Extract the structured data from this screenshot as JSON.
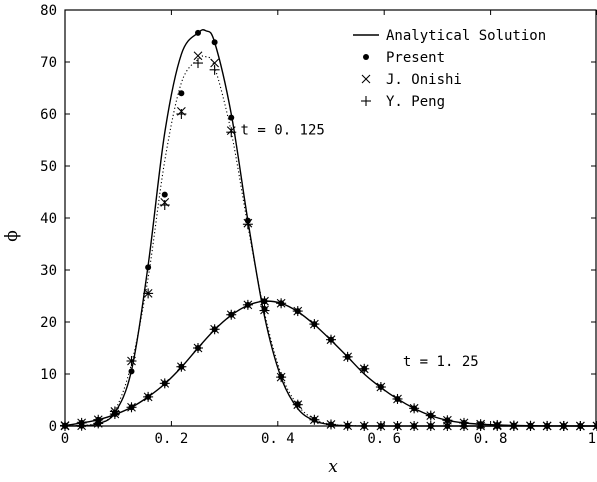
{
  "chart_data": {
    "type": "line",
    "xlabel": "x",
    "ylabel": "ϕ",
    "xlim": [
      0,
      1
    ],
    "ylim": [
      0,
      80
    ],
    "x_ticks": [
      0,
      0.2,
      0.4,
      0.6,
      0.8,
      1
    ],
    "x_tick_labels": [
      "0",
      "0. 2",
      "0. 4",
      "0. 6",
      "0. 8",
      "1"
    ],
    "y_ticks": [
      0,
      10,
      20,
      30,
      40,
      50,
      60,
      70,
      80
    ],
    "y_tick_labels": [
      "0",
      "10",
      "20",
      "30",
      "40",
      "50",
      "60",
      "70",
      "80"
    ],
    "grid": false,
    "legend_position": "top-right",
    "legend": [
      {
        "label": "Analytical Solution",
        "marker": "line"
      },
      {
        "label": "Present",
        "marker": "dot"
      },
      {
        "label": "J. Onishi",
        "marker": "x"
      },
      {
        "label": "Y. Peng",
        "marker": "plus"
      }
    ],
    "annotations": [
      {
        "text": "t = 0. 125",
        "x": 0.33,
        "y": 57
      },
      {
        "text": "t = 1. 25",
        "x": 0.635,
        "y": 12.5
      }
    ],
    "series": [
      {
        "name": "Analytical Solution",
        "curve": "t = 0.125",
        "style": "solid",
        "x": [
          0.0,
          0.03125,
          0.0625,
          0.09375,
          0.125,
          0.15625,
          0.1875,
          0.21875,
          0.25,
          0.265,
          0.28125,
          0.3125,
          0.34375,
          0.375,
          0.40625,
          0.4375,
          0.46875,
          0.5,
          0.53125,
          0.5625,
          0.6,
          0.7,
          0.8,
          0.9,
          1.0
        ],
        "y": [
          0.01,
          0.05,
          0.43,
          2.56,
          10.7,
          30.9,
          56.4,
          71.5,
          75.6,
          76.0,
          73.8,
          60.0,
          39.5,
          21.1,
          9.3,
          3.35,
          1.02,
          0.26,
          0.06,
          0.01,
          0.0,
          0.0,
          0.0,
          0.0,
          0.0
        ]
      },
      {
        "name": "Analytical Solution",
        "curve": "t = 1.25",
        "style": "solid",
        "x": [
          0.0,
          0.03125,
          0.0625,
          0.09375,
          0.125,
          0.15625,
          0.1875,
          0.21875,
          0.25,
          0.28125,
          0.3125,
          0.34375,
          0.375,
          0.40625,
          0.4375,
          0.46875,
          0.5,
          0.53125,
          0.5625,
          0.59375,
          0.625,
          0.65625,
          0.6875,
          0.71875,
          0.75,
          0.78125,
          0.8125,
          0.84375,
          0.875,
          0.90625,
          0.9375,
          0.96875,
          1.0
        ],
        "y": [
          0.1,
          0.6,
          1.2,
          2.2,
          3.6,
          5.6,
          8.1,
          11.3,
          15.0,
          18.5,
          21.3,
          23.2,
          24.0,
          23.6,
          22.0,
          19.5,
          16.5,
          13.3,
          10.0,
          7.4,
          5.2,
          3.4,
          2.0,
          1.1,
          0.6,
          0.35,
          0.2,
          0.1,
          0.05,
          0.02,
          0.01,
          0.0,
          0.0
        ]
      },
      {
        "name": "Present",
        "marker": "dot",
        "x": [
          0.0,
          0.03125,
          0.0625,
          0.09375,
          0.125,
          0.15625,
          0.1875,
          0.21875,
          0.25,
          0.28125,
          0.3125,
          0.34375,
          0.375,
          0.40625,
          0.4375,
          0.46875,
          0.5,
          0.53125,
          0.5625,
          0.59375,
          0.625,
          0.65625,
          0.6875,
          0.71875,
          0.75,
          0.78125,
          0.8125,
          0.84375,
          0.875,
          0.90625,
          0.9375,
          0.96875,
          1.0,
          0.0,
          0.03125,
          0.0625,
          0.09375,
          0.125,
          0.15625,
          0.1875,
          0.21875,
          0.25,
          0.28125,
          0.3125,
          0.34375,
          0.375,
          0.40625,
          0.4375,
          0.46875,
          0.5,
          0.53125,
          0.5625,
          0.59375,
          0.625,
          0.65625,
          0.6875,
          0.71875,
          0.75,
          0.78125,
          0.8125,
          0.84375,
          0.875,
          0.90625,
          0.9375,
          0.96875,
          1.0
        ],
        "y": [
          0.0,
          0.05,
          0.4,
          2.5,
          10.5,
          30.5,
          44.5,
          64.0,
          75.6,
          73.8,
          59.3,
          39.5,
          22.5,
          9.5,
          4.2,
          1.2,
          0.3,
          0.05,
          0.0,
          0.0,
          0.0,
          0.0,
          0.0,
          0.0,
          0.0,
          0.0,
          0.0,
          0.0,
          0.0,
          0.0,
          0.0,
          0.0,
          0.0,
          0.1,
          0.6,
          1.2,
          2.3,
          3.6,
          5.6,
          8.2,
          11.4,
          15.0,
          18.6,
          21.4,
          23.3,
          24.0,
          23.6,
          22.1,
          19.6,
          16.6,
          13.3,
          11.0,
          7.5,
          5.2,
          3.4,
          2.0,
          1.1,
          0.6,
          0.35,
          0.2,
          0.1,
          0.05,
          0.02,
          0.01,
          0.0,
          0.0
        ]
      },
      {
        "name": "J. Onishi",
        "marker": "x",
        "x": [
          0.0,
          0.03125,
          0.0625,
          0.09375,
          0.125,
          0.15625,
          0.1875,
          0.21875,
          0.25,
          0.28125,
          0.3125,
          0.34375,
          0.375,
          0.40625,
          0.4375,
          0.46875,
          0.5,
          0.53125,
          0.5625,
          0.59375,
          0.625,
          0.65625,
          0.6875,
          0.71875,
          0.75,
          0.78125,
          0.8125,
          0.84375,
          0.875,
          0.90625,
          0.9375,
          0.96875,
          1.0,
          0.0,
          0.03125,
          0.0625,
          0.09375,
          0.125,
          0.15625,
          0.1875,
          0.21875,
          0.25,
          0.28125,
          0.3125,
          0.34375,
          0.375,
          0.40625,
          0.4375,
          0.46875,
          0.5,
          0.53125,
          0.5625,
          0.59375,
          0.625,
          0.65625,
          0.6875,
          0.71875,
          0.75,
          0.78125,
          0.8125,
          0.84375,
          0.875,
          0.90625,
          0.9375,
          0.96875,
          1.0
        ],
        "y": [
          0.0,
          0.05,
          0.5,
          2.8,
          12.5,
          25.5,
          43.0,
          60.5,
          71.2,
          69.8,
          56.8,
          39.0,
          22.3,
          9.4,
          4.1,
          1.2,
          0.3,
          0.05,
          0.0,
          0.0,
          0.0,
          0.0,
          0.0,
          0.0,
          0.0,
          0.0,
          0.0,
          0.0,
          0.0,
          0.0,
          0.0,
          0.0,
          0.0,
          0.1,
          0.6,
          1.2,
          2.3,
          3.6,
          5.6,
          8.2,
          11.4,
          15.0,
          18.6,
          21.4,
          23.3,
          24.0,
          23.6,
          22.1,
          19.6,
          16.6,
          13.3,
          11.0,
          7.5,
          5.2,
          3.4,
          2.0,
          1.1,
          0.6,
          0.35,
          0.2,
          0.1,
          0.05,
          0.02,
          0.01,
          0.0,
          0.0
        ]
      },
      {
        "name": "Y. Peng",
        "marker": "plus",
        "x": [
          0.0,
          0.03125,
          0.0625,
          0.09375,
          0.125,
          0.15625,
          0.1875,
          0.21875,
          0.25,
          0.28125,
          0.3125,
          0.34375,
          0.375,
          0.40625,
          0.4375,
          0.46875,
          0.5,
          0.53125,
          0.5625,
          0.59375,
          0.625,
          0.65625,
          0.6875,
          0.71875,
          0.75,
          0.78125,
          0.8125,
          0.84375,
          0.875,
          0.90625,
          0.9375,
          0.96875,
          1.0,
          0.0,
          0.03125,
          0.0625,
          0.09375,
          0.125,
          0.15625,
          0.1875,
          0.21875,
          0.25,
          0.28125,
          0.3125,
          0.34375,
          0.375,
          0.40625,
          0.4375,
          0.46875,
          0.5,
          0.53125,
          0.5625,
          0.59375,
          0.625,
          0.65625,
          0.6875,
          0.71875,
          0.75,
          0.78125,
          0.8125,
          0.84375,
          0.875,
          0.90625,
          0.9375,
          0.96875,
          1.0
        ],
        "y": [
          0.0,
          0.05,
          0.5,
          2.8,
          12.5,
          25.5,
          42.5,
          60.0,
          69.8,
          68.5,
          56.5,
          38.8,
          22.2,
          9.4,
          4.1,
          1.2,
          0.3,
          0.05,
          0.0,
          0.0,
          0.0,
          0.0,
          0.0,
          0.0,
          0.0,
          0.0,
          0.0,
          0.0,
          0.0,
          0.0,
          0.0,
          0.0,
          0.0,
          0.1,
          0.6,
          1.2,
          2.3,
          3.6,
          5.6,
          8.2,
          11.4,
          15.0,
          18.6,
          21.4,
          23.3,
          24.0,
          23.6,
          22.1,
          19.6,
          16.6,
          13.3,
          11.0,
          7.5,
          5.2,
          3.4,
          2.0,
          1.1,
          0.6,
          0.35,
          0.2,
          0.1,
          0.05,
          0.02,
          0.01,
          0.0,
          0.0
        ]
      },
      {
        "name": "",
        "curve": "t = 0.125 dotted reference",
        "style": "dotted",
        "x": [
          0.0,
          0.0625,
          0.09375,
          0.125,
          0.15625,
          0.1875,
          0.21875,
          0.25,
          0.265,
          0.28125,
          0.3125,
          0.34375,
          0.375,
          0.40625,
          0.4375,
          0.46875,
          0.5,
          0.53125,
          0.5625,
          0.6
        ],
        "y": [
          0.0,
          0.5,
          3.0,
          12.0,
          28.5,
          51.0,
          66.0,
          70.5,
          71.0,
          69.0,
          56.5,
          38.5,
          21.8,
          10.0,
          4.0,
          1.3,
          0.35,
          0.08,
          0.01,
          0.0
        ]
      }
    ]
  }
}
